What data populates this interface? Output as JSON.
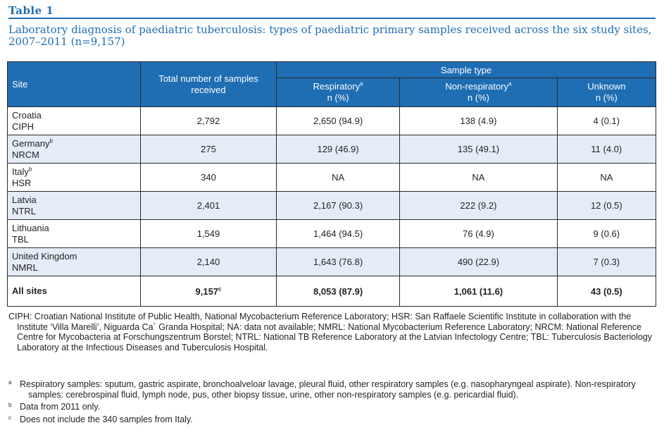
{
  "label": "Table 1",
  "caption": "Laboratory diagnosis of paediatric tuberculosis: types of paediatric primary samples received across the six study sites, 2007–2011 (n=9,157)",
  "header": {
    "site": "Site",
    "total": "Total number of samples received",
    "group": "Sample type",
    "respiratory": "Respiratory",
    "respiratory_mark": "a",
    "nonrespiratory": "Non-respiratory",
    "nonrespiratory_mark": "a",
    "unknown": "Unknown",
    "unit": "n (%)"
  },
  "rows": [
    {
      "country": "Croatia",
      "mark": "",
      "lab": "CIPH",
      "total": "2,792",
      "total_mark": "",
      "resp": "2,650 (94.9)",
      "nonresp": "138 (4.9)",
      "unknown": "4 (0.1)"
    },
    {
      "country": "Germany",
      "mark": "b",
      "lab": "NRCM",
      "total": "275",
      "total_mark": "",
      "resp": "129 (46.9)",
      "nonresp": "135 (49.1)",
      "unknown": "11 (4.0)"
    },
    {
      "country": "Italy",
      "mark": "b",
      "lab": "HSR",
      "total": "340",
      "total_mark": "",
      "resp": "NA",
      "nonresp": "NA",
      "unknown": "NA"
    },
    {
      "country": "Latvia",
      "mark": "",
      "lab": "NTRL",
      "total": "2,401",
      "total_mark": "",
      "resp": "2,167 (90.3)",
      "nonresp": "222 (9.2)",
      "unknown": "12 (0.5)"
    },
    {
      "country": "Lithuania",
      "mark": "",
      "lab": "TBL",
      "total": "1,549",
      "total_mark": "",
      "resp": "1,464 (94.5)",
      "nonresp": "76 (4.9)",
      "unknown": "9 (0.6)"
    },
    {
      "country": "United Kingdom",
      "mark": "",
      "lab": "NMRL",
      "total": "2,140",
      "total_mark": "",
      "resp": "1,643 (76.8)",
      "nonresp": "490 (22.9)",
      "unknown": "7 (0.3)"
    }
  ],
  "totals": {
    "label": "All sites",
    "total": "9,157",
    "total_mark": "c",
    "resp": "8,053 (87.9)",
    "nonresp": "1,061 (11.6)",
    "unknown": "43 (0.5)"
  },
  "abbreviations": "CIPH: Croatian National Institute of Public Health, National Mycobacterium Reference Laboratory; HSR: San Raffaele Scientific Institute in collaboration with the Institute ‘Villa Marelli’, Niguarda Ca´ Granda Hospital; NA: data not available; NMRL: National Mycobacterium Reference Laboratory; NRCM: National Reference Centre for Mycobacteria at Forschungszentrum Borstel; NTRL: National TB Reference Laboratory at the Latvian Infectology Centre; TBL: Tuberculosis Bacteriology Laboratory at the Infectious Diseases and Tuberculosis Hospital.",
  "footnotes": [
    {
      "mark": "a",
      "text": "Respiratory samples: sputum, gastric aspirate, bronchoalveloar lavage, pleural fluid, other respiratory samples (e.g. nasopharyngeal aspirate). Non-respiratory samples: cerebrospinal fluid, lymph node, pus, other biopsy tissue, urine, other non-respiratory samples (e.g. pericardial fluid)."
    },
    {
      "mark": "b",
      "text": "Data from 2011 only."
    },
    {
      "mark": "c",
      "text": "Does not include the 340 samples from Italy."
    }
  ],
  "colors": {
    "accent": "#1f6db3",
    "row_alt": "#e4edf7"
  }
}
